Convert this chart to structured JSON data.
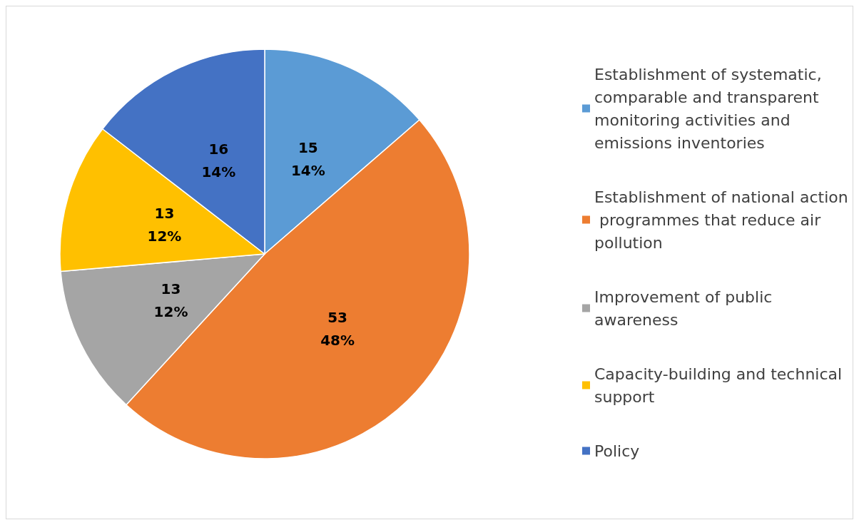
{
  "chart_data": {
    "type": "pie",
    "categories": [
      "Establishment of systematic, comparable and transparent monitoring activities and emissions inventories",
      "Establishment of national action programmes that reduce air pollution",
      "Improvement of public awareness",
      "Capacity-building and technical support",
      "Policy"
    ],
    "values": [
      15,
      53,
      13,
      13,
      16
    ],
    "colors": [
      "#5b9bd5",
      "#ed7d31",
      "#a5a5a5",
      "#ffc000",
      "#4472c4"
    ],
    "value_labels": [
      "15\n14%",
      "53\n48%",
      "13\n12%",
      "13\n12%",
      "16\n14%"
    ],
    "legend": "right"
  }
}
